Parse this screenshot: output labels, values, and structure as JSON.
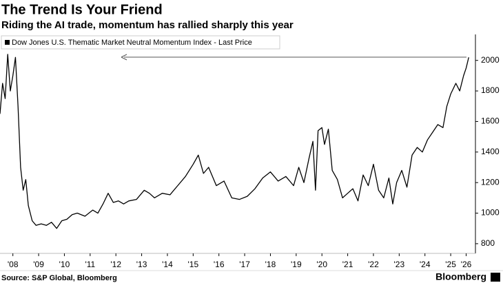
{
  "chart_data": {
    "type": "line",
    "title": "The Trend Is Your Friend",
    "subtitle": "Riding the AI trade, momentum has rallied sharply this year",
    "source": "Source: S&P Global, Bloomberg",
    "brand": "Bloomberg",
    "series": [
      {
        "name": "Dow Jones U.S. Thematic Market Neutral Momentum Index - Last Price",
        "color": "#000000",
        "x": [
          2008.0,
          2008.1,
          2008.2,
          2008.3,
          2008.4,
          2008.5,
          2008.6,
          2008.7,
          2008.8,
          2008.9,
          2009.0,
          2009.1,
          2009.25,
          2009.4,
          2009.6,
          2009.8,
          2010.0,
          2010.2,
          2010.4,
          2010.6,
          2010.8,
          2011.0,
          2011.3,
          2011.6,
          2011.8,
          2012.0,
          2012.2,
          2012.4,
          2012.6,
          2012.8,
          2013.0,
          2013.3,
          2013.6,
          2013.8,
          2014.0,
          2014.3,
          2014.6,
          2014.9,
          2015.2,
          2015.5,
          2015.7,
          2015.9,
          2016.1,
          2016.4,
          2016.7,
          2017.0,
          2017.3,
          2017.6,
          2017.9,
          2018.2,
          2018.5,
          2018.8,
          2019.1,
          2019.4,
          2019.6,
          2019.8,
          2020.0,
          2020.15,
          2020.25,
          2020.35,
          2020.5,
          2020.6,
          2020.75,
          2020.9,
          2021.1,
          2021.3,
          2021.5,
          2021.7,
          2021.9,
          2022.1,
          2022.3,
          2022.5,
          2022.7,
          2022.9,
          2023.1,
          2023.25,
          2023.4,
          2023.6,
          2023.8,
          2024.0,
          2024.2,
          2024.4,
          2024.6,
          2024.8,
          2025.0,
          2025.2,
          2025.35,
          2025.5,
          2025.7,
          2025.85,
          2026.0,
          2026.1,
          2026.2
        ],
        "values": [
          1650,
          1850,
          1750,
          2040,
          1800,
          1900,
          2020,
          1700,
          1300,
          1150,
          1220,
          1050,
          950,
          920,
          930,
          920,
          940,
          900,
          950,
          960,
          990,
          1000,
          980,
          1020,
          1000,
          1060,
          1130,
          1070,
          1080,
          1060,
          1080,
          1090,
          1150,
          1130,
          1100,
          1130,
          1120,
          1180,
          1240,
          1320,
          1380,
          1260,
          1300,
          1180,
          1210,
          1100,
          1090,
          1110,
          1160,
          1230,
          1270,
          1210,
          1240,
          1180,
          1300,
          1200,
          1360,
          1470,
          1150,
          1540,
          1560,
          1450,
          1550,
          1280,
          1220,
          1100,
          1130,
          1160,
          1080,
          1250,
          1180,
          1320,
          1150,
          1100,
          1230,
          1060,
          1200,
          1280,
          1170,
          1380,
          1430,
          1400,
          1480,
          1530,
          1580,
          1560,
          1700,
          1780,
          1850,
          1800,
          1900,
          1950,
          2020
        ]
      }
    ],
    "xlim": [
      2008.0,
      2026.3
    ],
    "xticks": [
      {
        "value": 2008.5,
        "label": "'08"
      },
      {
        "value": 2009.5,
        "label": "'09"
      },
      {
        "value": 2010.5,
        "label": "'10"
      },
      {
        "value": 2011.5,
        "label": "'11"
      },
      {
        "value": 2012.5,
        "label": "'12"
      },
      {
        "value": 2013.5,
        "label": "'13"
      },
      {
        "value": 2014.5,
        "label": "'14"
      },
      {
        "value": 2015.5,
        "label": "'15"
      },
      {
        "value": 2016.5,
        "label": "'16"
      },
      {
        "value": 2017.5,
        "label": "'17"
      },
      {
        "value": 2018.5,
        "label": "'18"
      },
      {
        "value": 2019.5,
        "label": "'19"
      },
      {
        "value": 2020.5,
        "label": "'20"
      },
      {
        "value": 2021.5,
        "label": "'21"
      },
      {
        "value": 2022.5,
        "label": "'22"
      },
      {
        "value": 2023.5,
        "label": "'23"
      },
      {
        "value": 2024.5,
        "label": "'24"
      },
      {
        "value": 2025.5,
        "label": "'25"
      },
      {
        "value": 2026.1,
        "label": "'26"
      }
    ],
    "ylim": [
      750,
      2170
    ],
    "yticks": [
      800,
      1000,
      1200,
      1400,
      1600,
      1800,
      2000
    ]
  }
}
